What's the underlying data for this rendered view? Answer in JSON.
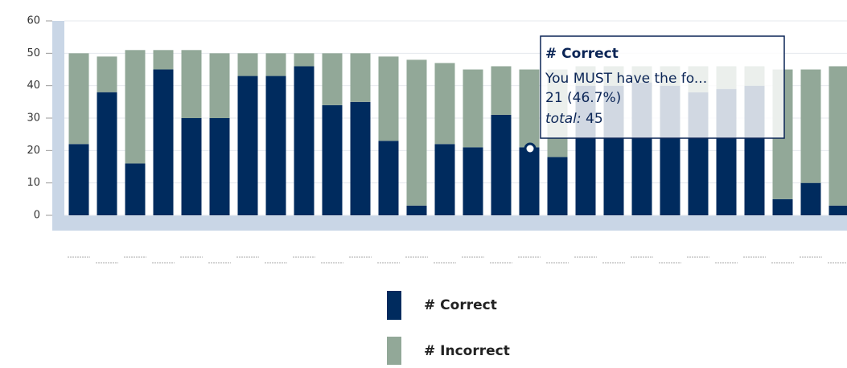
{
  "chart_data": {
    "type": "stacked_bar",
    "categories": [
      null,
      null,
      null,
      null,
      null,
      null,
      null,
      null,
      null,
      null,
      null,
      null,
      null,
      null,
      null,
      null,
      null,
      null,
      null,
      null,
      null,
      null,
      null,
      null,
      null,
      null,
      null,
      null
    ],
    "series": [
      {
        "name": "# Correct",
        "color": "#002b5e",
        "values": [
          22,
          38,
          16,
          45,
          30,
          30,
          43,
          43,
          46,
          34,
          35,
          23,
          3,
          22,
          21,
          31,
          21,
          18,
          40,
          40,
          41,
          40,
          38,
          39,
          40,
          5,
          10,
          3
        ]
      },
      {
        "name": "# Incorrect",
        "color": "#92a898",
        "values": [
          28,
          11,
          35,
          6,
          21,
          20,
          7,
          7,
          4,
          16,
          15,
          26,
          45,
          25,
          24,
          15,
          24,
          27,
          6,
          6,
          5,
          6,
          8,
          7,
          6,
          40,
          35,
          43
        ]
      }
    ],
    "ylim": [
      0,
      60
    ],
    "yticks": [
      0,
      10,
      20,
      30,
      40,
      50,
      60
    ],
    "grid": true,
    "tooltip": {
      "title": "# Correct",
      "line1": "You MUST have the fo...",
      "line2": "21 (46.7%)",
      "total_label": "total:",
      "total_value": "45"
    }
  }
}
